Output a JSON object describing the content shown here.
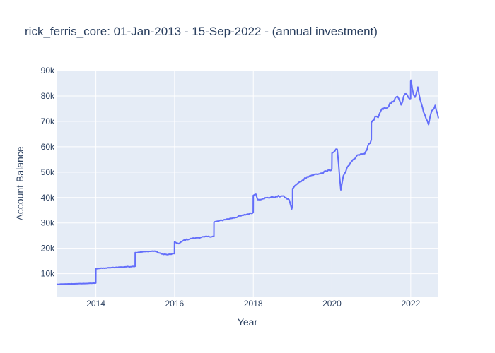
{
  "chart_data": {
    "type": "line",
    "title": "rick_ferris_core: 01-Jan-2013 - 15-Sep-2022 - (annual investment)",
    "xlabel": "Year",
    "ylabel": "Account Balance",
    "xlim": [
      "2013-01-01",
      "2022-09-15"
    ],
    "ylim": [
      1000,
      90000
    ],
    "x_ticks": [
      "2014",
      "2016",
      "2018",
      "2020",
      "2022"
    ],
    "y_ticks": [
      "10k",
      "20k",
      "30k",
      "40k",
      "50k",
      "60k",
      "70k",
      "80k",
      "90k"
    ],
    "grid": true,
    "colors": {
      "line": "#636efa",
      "plot_bg": "#e5ecf6",
      "grid": "#ffffff",
      "text": "#2a3f5f"
    },
    "series": [
      {
        "x": [
          "2013-01-01",
          "2013-04-01",
          "2013-07-01",
          "2013-10-01",
          "2013-12-31",
          "2014-01-01",
          "2014-04-01",
          "2014-07-01",
          "2014-10-01",
          "2014-12-31",
          "2015-01-01",
          "2015-04-01",
          "2015-07-01",
          "2015-09-01",
          "2015-11-01",
          "2015-12-31",
          "2016-01-01",
          "2016-02-10",
          "2016-04-01",
          "2016-07-01",
          "2016-10-01",
          "2016-12-31",
          "2017-01-01",
          "2017-04-01",
          "2017-07-01",
          "2017-10-01",
          "2017-12-31",
          "2018-01-01",
          "2018-01-25",
          "2018-02-10",
          "2018-04-01",
          "2018-07-01",
          "2018-10-01",
          "2018-12-01",
          "2018-12-24",
          "2018-12-31",
          "2019-01-01",
          "2019-02-01",
          "2019-04-01",
          "2019-05-15",
          "2019-07-01",
          "2019-10-01",
          "2019-12-31",
          "2020-01-01",
          "2020-02-19",
          "2020-03-23",
          "2020-04-15",
          "2020-06-01",
          "2020-09-01",
          "2020-10-30",
          "2020-12-31",
          "2021-01-01",
          "2021-02-15",
          "2021-03-05",
          "2021-04-01",
          "2021-05-12",
          "2021-07-01",
          "2021-09-01",
          "2021-10-04",
          "2021-11-08",
          "2021-12-31",
          "2022-01-01",
          "2022-01-04",
          "2022-01-27",
          "2022-02-10",
          "2022-03-08",
          "2022-03-29",
          "2022-05-12",
          "2022-06-16",
          "2022-07-15",
          "2022-08-16",
          "2022-09-15"
        ],
        "values": [
          5800,
          5950,
          6050,
          6150,
          6300,
          12000,
          12200,
          12500,
          12700,
          12900,
          18300,
          18700,
          18900,
          17800,
          17500,
          17900,
          22500,
          21800,
          23300,
          24000,
          24500,
          24700,
          30300,
          31200,
          32000,
          33000,
          34100,
          40800,
          41300,
          39200,
          39600,
          40200,
          40600,
          39000,
          35500,
          37300,
          43500,
          45000,
          46800,
          48200,
          48800,
          49600,
          51200,
          57500,
          59000,
          43000,
          48500,
          52500,
          56800,
          57200,
          62800,
          69500,
          72000,
          71500,
          74300,
          75200,
          77000,
          79800,
          76500,
          80800,
          79000,
          85800,
          86200,
          80500,
          79500,
          83500,
          78600,
          72600,
          68700,
          74200,
          76300,
          71200
        ]
      }
    ]
  }
}
